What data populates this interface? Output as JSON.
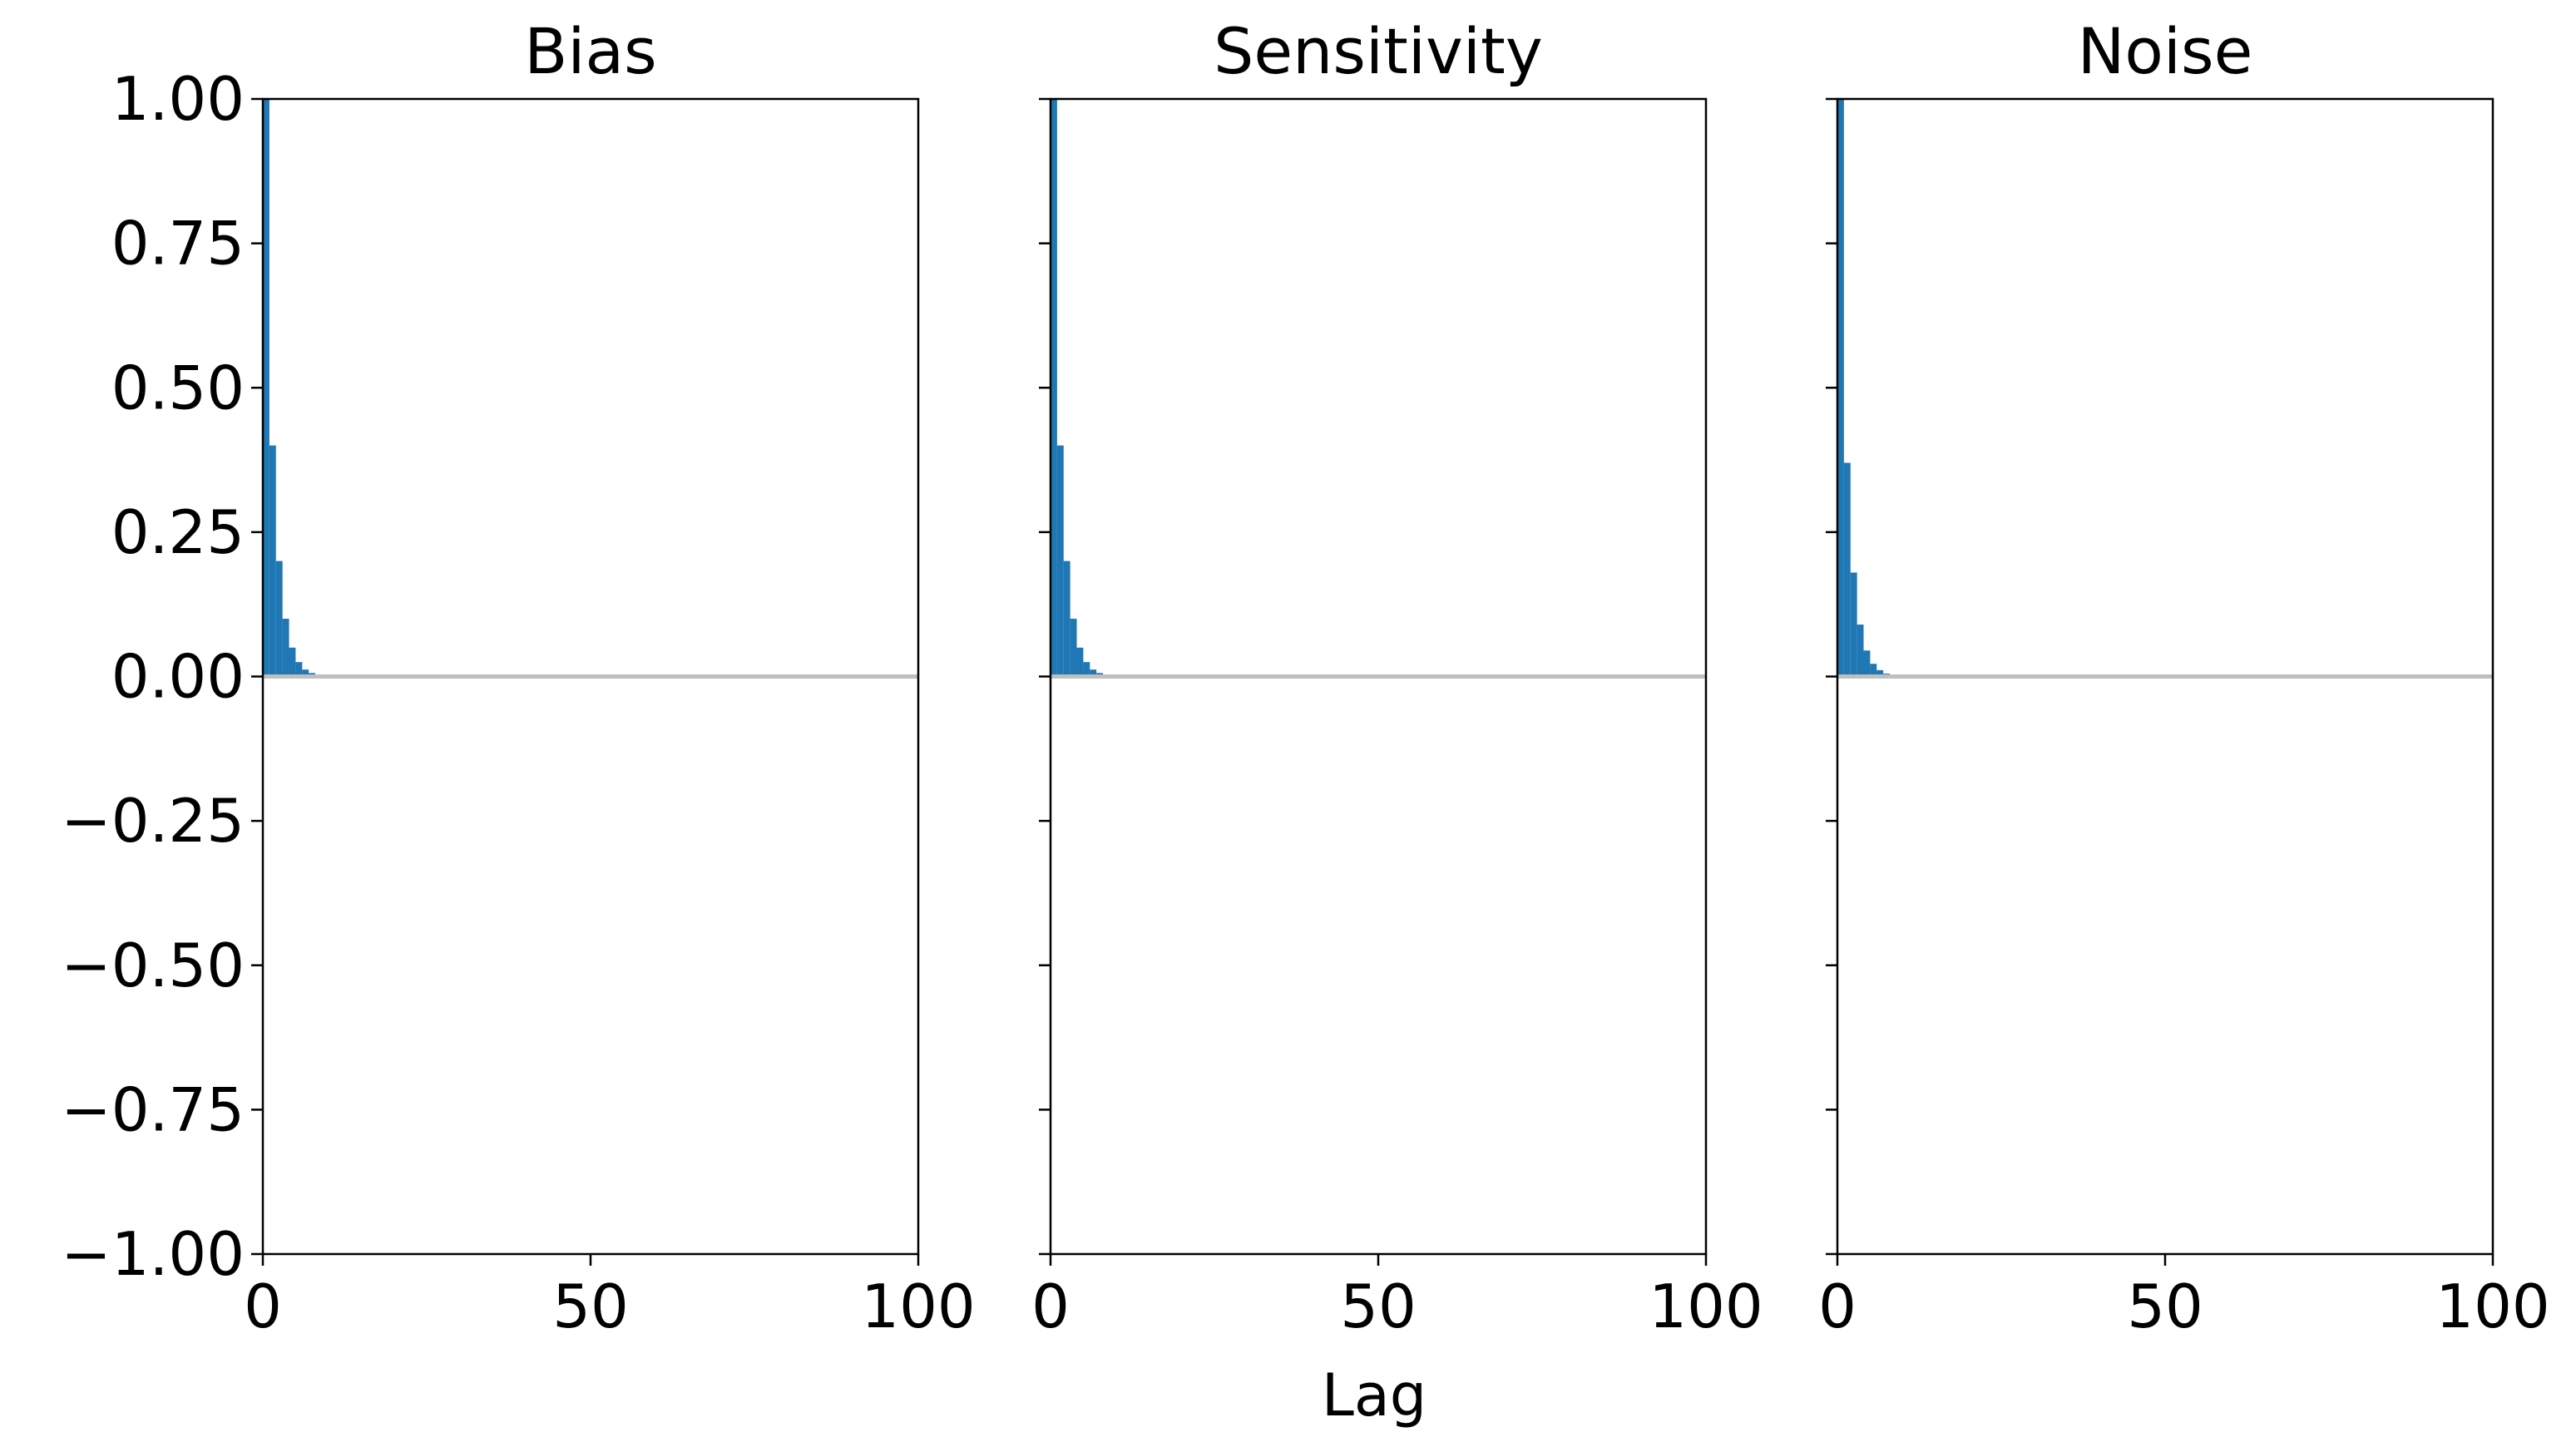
{
  "chart_data": {
    "type": "bar",
    "xlabel": "Lag",
    "ylabel": "",
    "xlim": [
      0,
      100
    ],
    "ylim": [
      -1.0,
      1.0
    ],
    "xticks": [
      "0",
      "50",
      "100"
    ],
    "yticks": [
      "1.00",
      "0.75",
      "0.50",
      "0.25",
      "0.00",
      "−0.25",
      "−0.50",
      "−0.75",
      "−1.00"
    ],
    "grid": false,
    "shared_y": true,
    "colors": {
      "bar": "#1f77b4",
      "zero_line": "#bfbfbf",
      "axes": "#000000"
    },
    "panels": [
      {
        "title": "Bias",
        "lags": [
          0,
          1,
          2,
          3,
          4,
          5,
          6,
          7,
          8,
          9,
          10
        ],
        "values": [
          1.0,
          0.4,
          0.2,
          0.1,
          0.05,
          0.025,
          0.012,
          0.006,
          0.003,
          0.002,
          0.001
        ]
      },
      {
        "title": "Sensitivity",
        "lags": [
          0,
          1,
          2,
          3,
          4,
          5,
          6,
          7,
          8,
          9,
          10
        ],
        "values": [
          1.0,
          0.4,
          0.2,
          0.1,
          0.05,
          0.025,
          0.012,
          0.006,
          0.003,
          0.002,
          0.001
        ]
      },
      {
        "title": "Noise",
        "lags": [
          0,
          1,
          2,
          3,
          4,
          5,
          6,
          7,
          8,
          9,
          10
        ],
        "values": [
          1.0,
          0.37,
          0.18,
          0.09,
          0.045,
          0.022,
          0.011,
          0.005,
          0.003,
          0.002,
          0.001
        ]
      }
    ]
  }
}
